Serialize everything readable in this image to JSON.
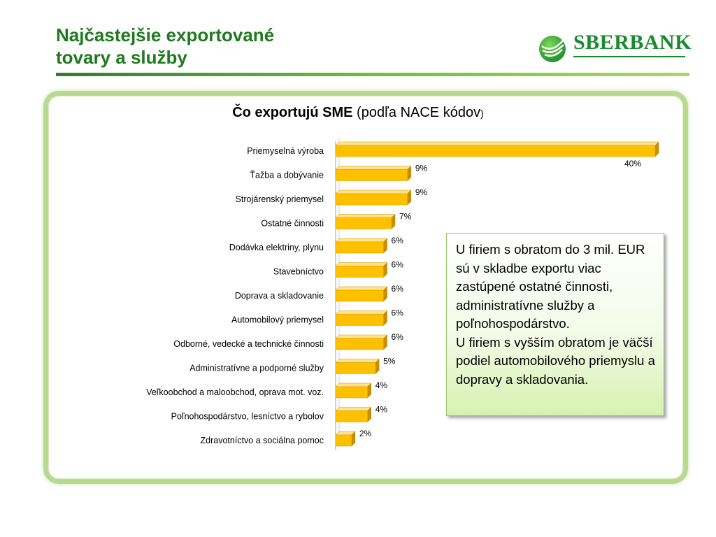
{
  "slide": {
    "title_line1": "Najčastejšie exportované",
    "title_line2": "tovary a služby"
  },
  "logo": {
    "text": "SBERBANK",
    "icon": "sberbank-logo-icon",
    "color": "#1a8a2e"
  },
  "chart_data": {
    "type": "bar",
    "orientation": "horizontal",
    "title_bold": "Čo exportujú SME",
    "title_rest": " (podľa NACE kódov",
    "title_paren": ")",
    "categories": [
      "Priemyselná výroba",
      "Ťažba a dobývanie",
      "Strojárenský priemysel",
      "Ostatné činnosti",
      "Dodávka elektriny, plynu",
      "Stavebníctvo",
      "Doprava a skladovanie",
      "Automobilový priemysel",
      "Odborné, vedecké a technické činnosti",
      "Administratívne a podporné služby",
      "Veľkoobchod a maloobchod, oprava mot. voz.",
      "Poľnohospodárstvo, lesníctvo a rybolov",
      "Zdravotníctvo a sociálna pomoc"
    ],
    "values": [
      40,
      9,
      9,
      7,
      6,
      6,
      6,
      6,
      6,
      5,
      4,
      4,
      2
    ],
    "labels": [
      "40%",
      "9%",
      "9%",
      "7%",
      "6%",
      "6%",
      "6%",
      "6%",
      "6%",
      "5%",
      "4%",
      "4%",
      "2%"
    ],
    "unit": "%",
    "xlim": [
      0,
      40
    ],
    "grid": false,
    "bar_color": "#ffc000"
  },
  "note": {
    "paragraph1": "U firiem s obratom do 3 mil. EUR sú v skladbe exportu viac zastúpené ostatné činnosti, administratívne služby a poľnohospodárstvo.",
    "paragraph2": "U firiem s vyšším obratom je väčší podiel automobilového priemyslu a dopravy a skladovania."
  }
}
